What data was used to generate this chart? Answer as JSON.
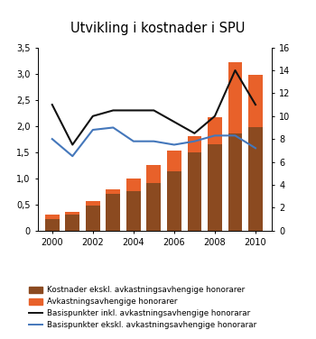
{
  "title": "Utvikling i kostnader i SPU",
  "years": [
    2000,
    2001,
    2002,
    2003,
    2004,
    2005,
    2006,
    2007,
    2008,
    2009,
    2010
  ],
  "bar_base": [
    0.22,
    0.3,
    0.48,
    0.7,
    0.75,
    0.9,
    1.13,
    1.5,
    1.65,
    1.85,
    1.97
  ],
  "bar_orange": [
    0.08,
    0.05,
    0.09,
    0.08,
    0.25,
    0.35,
    0.4,
    0.3,
    0.52,
    1.37,
    1.0
  ],
  "line_inkl": [
    11.0,
    7.5,
    10.0,
    10.5,
    10.5,
    10.5,
    9.5,
    8.5,
    10.0,
    14.0,
    11.0
  ],
  "line_ekskl": [
    8.0,
    6.5,
    8.8,
    9.0,
    7.8,
    7.8,
    7.5,
    7.8,
    8.3,
    8.3,
    7.2
  ],
  "ylim_left": [
    0,
    3.5
  ],
  "ylim_right": [
    0,
    16
  ],
  "yticks_left": [
    0,
    0.5,
    1.0,
    1.5,
    2.0,
    2.5,
    3.0,
    3.5
  ],
  "yticks_right": [
    0,
    2,
    4,
    6,
    8,
    10,
    12,
    14,
    16
  ],
  "color_brown": "#8B4A20",
  "color_orange": "#E8612A",
  "color_black": "#111111",
  "color_blue": "#4477BB",
  "legend_labels": [
    "Kostnader ekskl. avkastningsavhengige honorarer",
    "Avkastningsavhengige honorarer",
    "Basispunkter inkl. avkastningsavhengige honorarar",
    "Basispunkter ekskl. avkastningsavhengige honorarar"
  ],
  "background_color": "#ffffff",
  "bar_width": 0.7
}
